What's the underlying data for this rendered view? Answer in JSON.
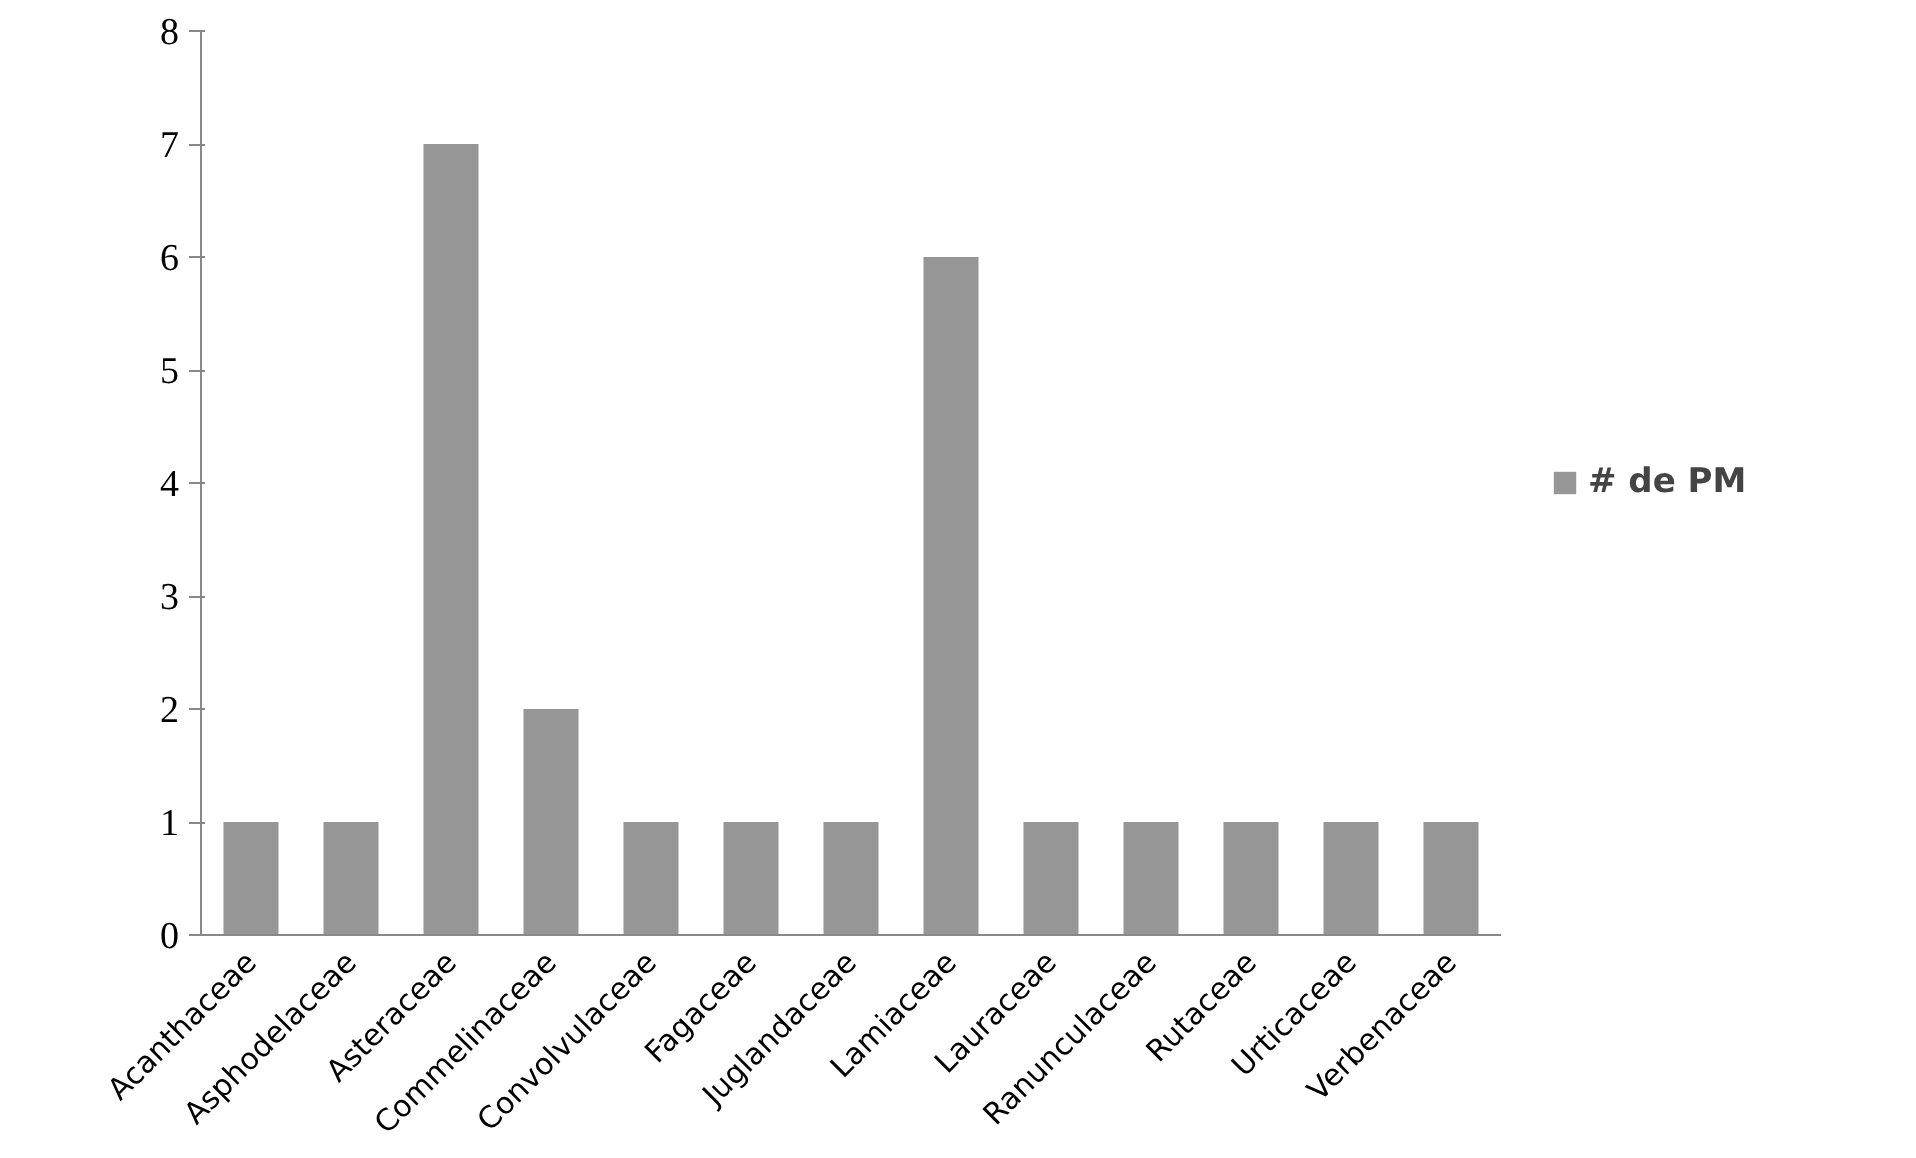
{
  "chart_data": {
    "type": "bar",
    "categories": [
      "Acanthaceae",
      "Asphodelaceae",
      "Asteraceae",
      "Commelinaceae",
      "Convolvulaceae",
      "Fagaceae",
      "Juglandaceae",
      "Lamiaceae",
      "Lauraceae",
      "Ranunculaceae",
      "Rutaceae",
      "Urticaceae",
      "Verbenaceae"
    ],
    "series": [
      {
        "name": "# de PM",
        "color": "#969696",
        "values": [
          1,
          1,
          7,
          2,
          1,
          1,
          1,
          6,
          1,
          1,
          1,
          1,
          1
        ]
      }
    ],
    "ylim": [
      0,
      8
    ],
    "yticks": [
      0,
      1,
      2,
      3,
      4,
      5,
      6,
      7,
      8
    ],
    "grid": false,
    "legend": "right"
  }
}
